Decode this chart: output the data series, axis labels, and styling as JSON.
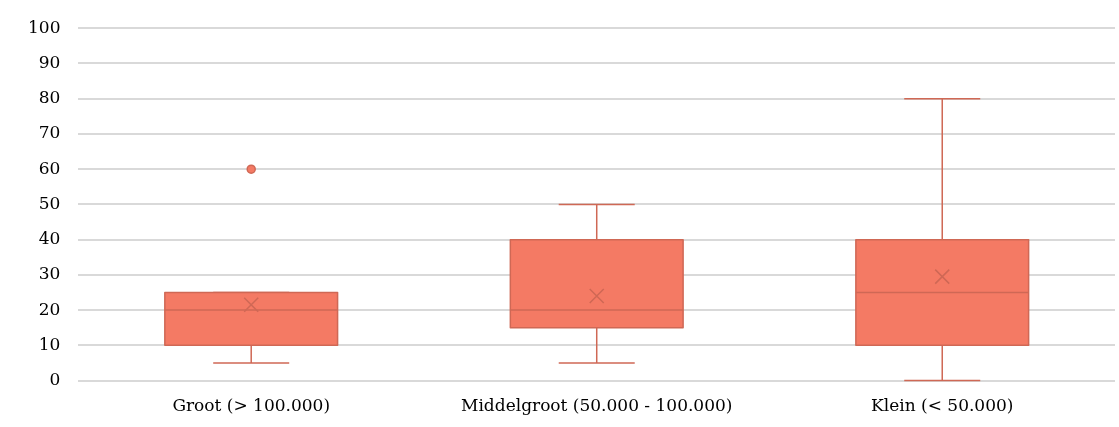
{
  "chart_data": {
    "type": "box",
    "categories": [
      "Groot (> 100.000)",
      "Middelgroot (50.000 - 100.000)",
      "Klein (< 50.000)"
    ],
    "color": "#f47a64",
    "boxes": [
      {
        "low": 5,
        "q1": 10,
        "median": 20,
        "q3": 25,
        "high": 25,
        "mean": 21.5,
        "outliers": [
          60
        ]
      },
      {
        "low": 5,
        "q1": 15,
        "median": 20,
        "q3": 40,
        "high": 50,
        "mean": 24
      },
      {
        "low": 0,
        "q1": 10,
        "median": 25,
        "q3": 40,
        "high": 80,
        "mean": 29.5
      }
    ],
    "ylim": [
      0,
      100
    ],
    "yticks": [
      0,
      10,
      20,
      30,
      40,
      50,
      60,
      70,
      80,
      90,
      100
    ],
    "grid": "y",
    "legend": false
  }
}
